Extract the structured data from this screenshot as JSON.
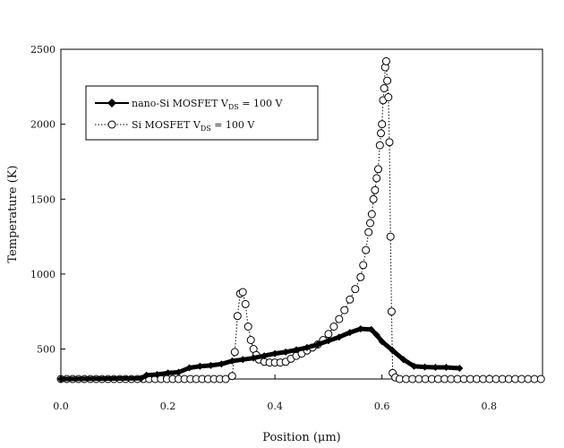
{
  "chart_data": {
    "type": "scatter",
    "xlabel": "Position (μm)",
    "ylabel": "Temperature (K)",
    "xlim": [
      0.0,
      0.9
    ],
    "ylim": [
      300,
      2500
    ],
    "xticks": [
      "0.0",
      "0.2",
      "0.4",
      "0.6",
      "0.8"
    ],
    "yticks": [
      "500",
      "1000",
      "1500",
      "2000",
      "2500"
    ],
    "legend_placement": "top-left",
    "grid": false,
    "series": [
      {
        "name": "nano-Si MOSFET V",
        "subscript": "DS",
        "suffix": " = 100 V",
        "line": "solid",
        "marker": "filled-diamond",
        "color": "#000000",
        "points": [
          [
            0.0,
            300
          ],
          [
            0.15,
            305
          ],
          [
            0.16,
            325
          ],
          [
            0.18,
            330
          ],
          [
            0.2,
            340
          ],
          [
            0.22,
            345
          ],
          [
            0.24,
            375
          ],
          [
            0.26,
            385
          ],
          [
            0.28,
            390
          ],
          [
            0.3,
            400
          ],
          [
            0.32,
            420
          ],
          [
            0.34,
            430
          ],
          [
            0.36,
            440
          ],
          [
            0.38,
            455
          ],
          [
            0.4,
            470
          ],
          [
            0.42,
            480
          ],
          [
            0.44,
            495
          ],
          [
            0.46,
            510
          ],
          [
            0.48,
            530
          ],
          [
            0.5,
            555
          ],
          [
            0.52,
            580
          ],
          [
            0.54,
            610
          ],
          [
            0.56,
            635
          ],
          [
            0.58,
            630
          ],
          [
            0.59,
            595
          ],
          [
            0.6,
            550
          ],
          [
            0.62,
            490
          ],
          [
            0.64,
            430
          ],
          [
            0.66,
            385
          ],
          [
            0.68,
            380
          ],
          [
            0.7,
            378
          ],
          [
            0.72,
            378
          ],
          [
            0.745,
            372
          ]
        ]
      },
      {
        "name": "Si MOSFET V",
        "subscript": "DS",
        "suffix": " = 100 V",
        "line": "dotted",
        "marker": "open-circle",
        "color": "#000000",
        "points": [
          [
            0.0,
            300
          ],
          [
            0.011,
            300
          ],
          [
            0.022,
            300
          ],
          [
            0.033,
            300
          ],
          [
            0.044,
            300
          ],
          [
            0.055,
            300
          ],
          [
            0.066,
            300
          ],
          [
            0.077,
            300
          ],
          [
            0.088,
            300
          ],
          [
            0.099,
            300
          ],
          [
            0.11,
            300
          ],
          [
            0.121,
            300
          ],
          [
            0.132,
            300
          ],
          [
            0.143,
            300
          ],
          [
            0.154,
            300
          ],
          [
            0.165,
            300
          ],
          [
            0.176,
            300
          ],
          [
            0.187,
            300
          ],
          [
            0.198,
            300
          ],
          [
            0.209,
            300
          ],
          [
            0.22,
            300
          ],
          [
            0.231,
            300
          ],
          [
            0.242,
            300
          ],
          [
            0.253,
            300
          ],
          [
            0.264,
            300
          ],
          [
            0.275,
            300
          ],
          [
            0.286,
            300
          ],
          [
            0.297,
            300
          ],
          [
            0.308,
            300
          ],
          [
            0.32,
            320
          ],
          [
            0.325,
            480
          ],
          [
            0.33,
            720
          ],
          [
            0.335,
            870
          ],
          [
            0.34,
            880
          ],
          [
            0.345,
            800
          ],
          [
            0.35,
            650
          ],
          [
            0.355,
            560
          ],
          [
            0.36,
            500
          ],
          [
            0.365,
            460
          ],
          [
            0.37,
            430
          ],
          [
            0.38,
            415
          ],
          [
            0.39,
            410
          ],
          [
            0.4,
            410
          ],
          [
            0.41,
            410
          ],
          [
            0.42,
            415
          ],
          [
            0.43,
            435
          ],
          [
            0.44,
            455
          ],
          [
            0.45,
            470
          ],
          [
            0.46,
            490
          ],
          [
            0.47,
            510
          ],
          [
            0.48,
            530
          ],
          [
            0.49,
            560
          ],
          [
            0.5,
            600
          ],
          [
            0.51,
            650
          ],
          [
            0.52,
            700
          ],
          [
            0.53,
            760
          ],
          [
            0.54,
            830
          ],
          [
            0.55,
            900
          ],
          [
            0.56,
            980
          ],
          [
            0.565,
            1060
          ],
          [
            0.57,
            1160
          ],
          [
            0.575,
            1280
          ],
          [
            0.578,
            1340
          ],
          [
            0.581,
            1400
          ],
          [
            0.584,
            1500
          ],
          [
            0.587,
            1560
          ],
          [
            0.59,
            1640
          ],
          [
            0.593,
            1700
          ],
          [
            0.596,
            1860
          ],
          [
            0.598,
            1940
          ],
          [
            0.6,
            2000
          ],
          [
            0.602,
            2160
          ],
          [
            0.604,
            2240
          ],
          [
            0.606,
            2380
          ],
          [
            0.608,
            2420
          ],
          [
            0.61,
            2290
          ],
          [
            0.612,
            2180
          ],
          [
            0.614,
            1880
          ],
          [
            0.616,
            1250
          ],
          [
            0.618,
            750
          ],
          [
            0.62,
            340
          ],
          [
            0.625,
            310
          ],
          [
            0.633,
            300
          ],
          [
            0.645,
            300
          ],
          [
            0.657,
            300
          ],
          [
            0.669,
            300
          ],
          [
            0.681,
            300
          ],
          [
            0.693,
            300
          ],
          [
            0.705,
            300
          ],
          [
            0.717,
            300
          ],
          [
            0.729,
            300
          ],
          [
            0.741,
            300
          ],
          [
            0.753,
            300
          ],
          [
            0.765,
            300
          ],
          [
            0.777,
            300
          ],
          [
            0.789,
            300
          ],
          [
            0.801,
            300
          ],
          [
            0.813,
            300
          ],
          [
            0.825,
            300
          ],
          [
            0.837,
            300
          ],
          [
            0.849,
            300
          ],
          [
            0.861,
            300
          ],
          [
            0.873,
            300
          ],
          [
            0.885,
            300
          ],
          [
            0.897,
            300
          ]
        ]
      }
    ]
  }
}
